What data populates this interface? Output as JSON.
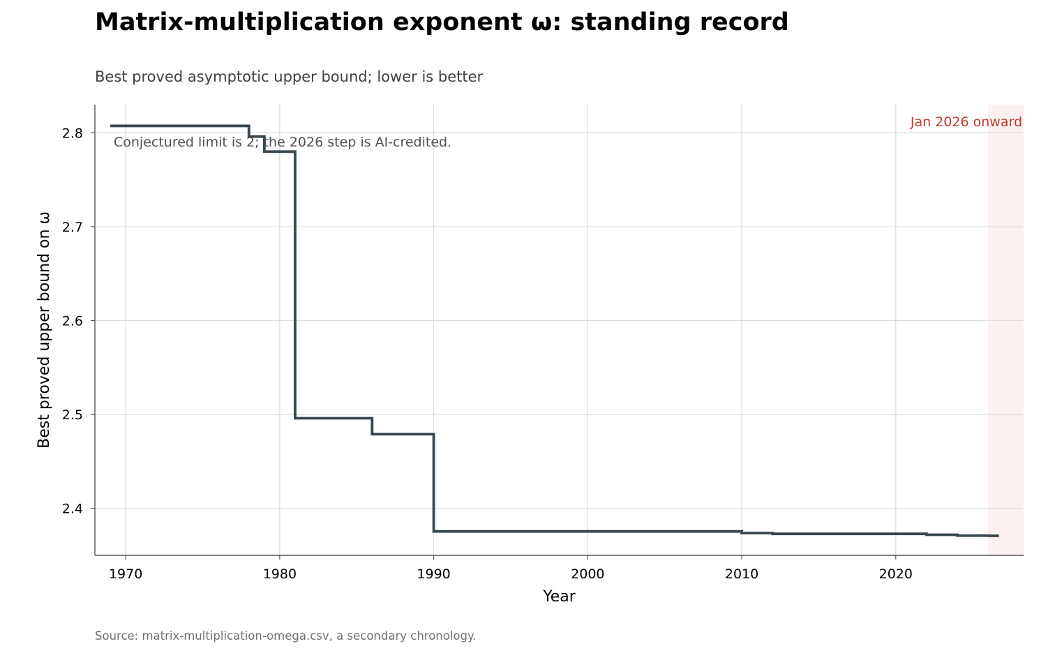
{
  "header": {
    "title": "Matrix-multiplication exponent ω: standing record",
    "subtitle": "Best proved asymptotic upper bound; lower is better"
  },
  "footer": {
    "source": "Source: matrix-multiplication-omega.csv, a secondary chronology."
  },
  "chart_data": {
    "type": "line",
    "step": true,
    "xlabel": "Year",
    "ylabel": "Best proved upper bound on ω",
    "xlim": [
      1968,
      2028.3
    ],
    "ylim": [
      2.35,
      2.83
    ],
    "xticks": [
      1970,
      1980,
      1990,
      2000,
      2010,
      2020
    ],
    "yticks": [
      2.4,
      2.5,
      2.6,
      2.7,
      2.8
    ],
    "grid": true,
    "line_color": "#37474f",
    "points": [
      {
        "x": 1969.0,
        "y": 2.8074
      },
      {
        "x": 1978.0,
        "y": 2.796
      },
      {
        "x": 1979.0,
        "y": 2.78
      },
      {
        "x": 1981.0,
        "y": 2.496
      },
      {
        "x": 1986.0,
        "y": 2.479
      },
      {
        "x": 1990.0,
        "y": 2.3755
      },
      {
        "x": 2010.0,
        "y": 2.3737
      },
      {
        "x": 2012.0,
        "y": 2.3729
      },
      {
        "x": 2022.0,
        "y": 2.3719
      },
      {
        "x": 2024.0,
        "y": 2.371
      },
      {
        "x": 2026.0,
        "y": 2.3708
      }
    ],
    "line_end_x": 2026.7,
    "shaded_region": {
      "x_start": 2026.0,
      "x_end": 2028.3,
      "label": "Jan 2026 onward",
      "color": "#c0392b"
    },
    "annotation": "Conjectured limit is 2; the 2026 step is AI-credited."
  }
}
